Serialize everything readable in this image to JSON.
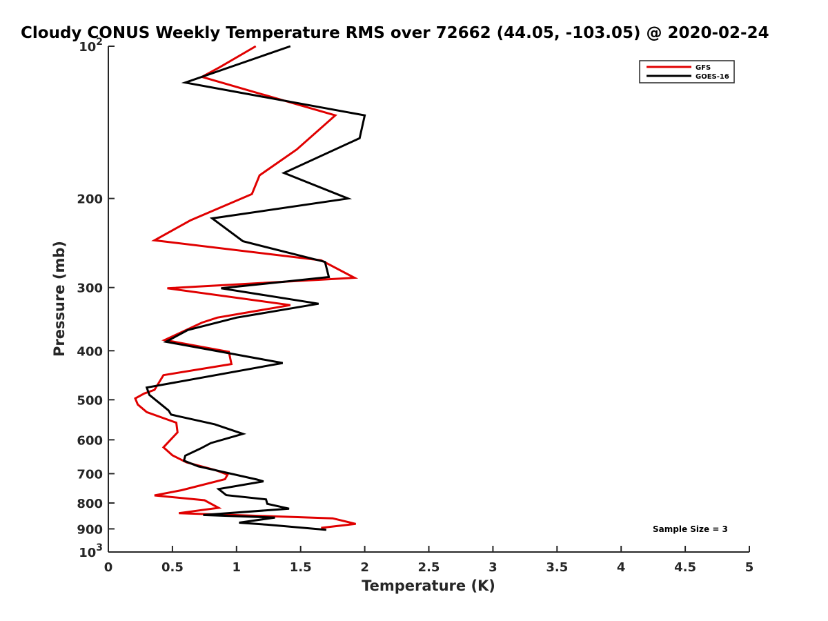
{
  "chart_data": {
    "type": "line",
    "title": "Cloudy CONUS Weekly Temperature RMS over 72662 (44.05, -103.05) @ 2020-02-24",
    "xlabel": "Temperature (K)",
    "ylabel": "Pressure (mb)",
    "xlim": [
      0,
      5
    ],
    "ylim": [
      100,
      1000
    ],
    "y_scale": "log",
    "y_reversed": true,
    "grid": false,
    "legend_position": "top-right",
    "x_ticks": [
      "0",
      "0.5",
      "1",
      "1.5",
      "2",
      "2.5",
      "3",
      "3.5",
      "4",
      "4.5",
      "5"
    ],
    "y_ticks": [
      {
        "value": 100,
        "base": "10",
        "exp": "2"
      },
      {
        "value": 200,
        "label": "200"
      },
      {
        "value": 300,
        "label": "300"
      },
      {
        "value": 400,
        "label": "400"
      },
      {
        "value": 500,
        "label": "500"
      },
      {
        "value": 600,
        "label": "600"
      },
      {
        "value": 700,
        "label": "700"
      },
      {
        "value": 800,
        "label": "800"
      },
      {
        "value": 900,
        "label": "900"
      },
      {
        "value": 1000,
        "base": "10",
        "exp": "3"
      }
    ],
    "annotation": "Sample Size = 3",
    "series": [
      {
        "name": "GFS",
        "color": "#e00000",
        "points": [
          [
            1.15,
            100
          ],
          [
            0.87,
            110
          ],
          [
            0.73,
            115
          ],
          [
            1.77,
            137
          ],
          [
            1.47,
            160
          ],
          [
            1.18,
            180
          ],
          [
            1.12,
            196
          ],
          [
            0.64,
            221
          ],
          [
            0.36,
            242
          ],
          [
            1.66,
            265
          ],
          [
            1.92,
            287
          ],
          [
            0.46,
            301
          ],
          [
            1.42,
            325
          ],
          [
            0.85,
            344
          ],
          [
            0.73,
            352
          ],
          [
            0.44,
            381
          ],
          [
            0.94,
            402
          ],
          [
            0.96,
            425
          ],
          [
            0.43,
            447
          ],
          [
            0.36,
            478
          ],
          [
            0.28,
            486
          ],
          [
            0.21,
            497
          ],
          [
            0.23,
            511
          ],
          [
            0.3,
            529
          ],
          [
            0.53,
            555
          ],
          [
            0.54,
            580
          ],
          [
            0.43,
            621
          ],
          [
            0.5,
            644
          ],
          [
            0.61,
            665
          ],
          [
            0.83,
            688
          ],
          [
            0.93,
            703
          ],
          [
            0.91,
            718
          ],
          [
            0.57,
            755
          ],
          [
            0.36,
            773
          ],
          [
            0.75,
            790
          ],
          [
            0.86,
            818
          ],
          [
            0.55,
            838
          ],
          [
            1.75,
            858
          ],
          [
            1.93,
            880
          ],
          [
            1.66,
            896
          ]
        ]
      },
      {
        "name": "GOES-16",
        "color": "#000000",
        "points": [
          [
            1.42,
            100
          ],
          [
            0.6,
            118
          ],
          [
            2.0,
            137
          ],
          [
            1.96,
            152
          ],
          [
            1.37,
            178
          ],
          [
            1.87,
            200
          ],
          [
            0.81,
            219
          ],
          [
            1.05,
            243
          ],
          [
            1.69,
            267
          ],
          [
            1.72,
            286
          ],
          [
            0.88,
            301
          ],
          [
            1.64,
            323
          ],
          [
            1.0,
            344
          ],
          [
            0.62,
            364
          ],
          [
            0.45,
            384
          ],
          [
            1.36,
            423
          ],
          [
            0.3,
            473
          ],
          [
            0.32,
            489
          ],
          [
            0.47,
            525
          ],
          [
            0.49,
            535
          ],
          [
            0.83,
            559
          ],
          [
            1.05,
            584
          ],
          [
            0.8,
            609
          ],
          [
            0.72,
            624
          ],
          [
            0.6,
            645
          ],
          [
            0.59,
            660
          ],
          [
            0.7,
            677
          ],
          [
            1.16,
            719
          ],
          [
            1.21,
            725
          ],
          [
            0.86,
            751
          ],
          [
            0.92,
            772
          ],
          [
            1.23,
            787
          ],
          [
            1.24,
            803
          ],
          [
            1.41,
            821
          ],
          [
            0.74,
            845
          ],
          [
            1.3,
            855
          ],
          [
            1.02,
            875
          ],
          [
            1.24,
            883
          ],
          [
            1.7,
            904
          ]
        ]
      }
    ]
  }
}
